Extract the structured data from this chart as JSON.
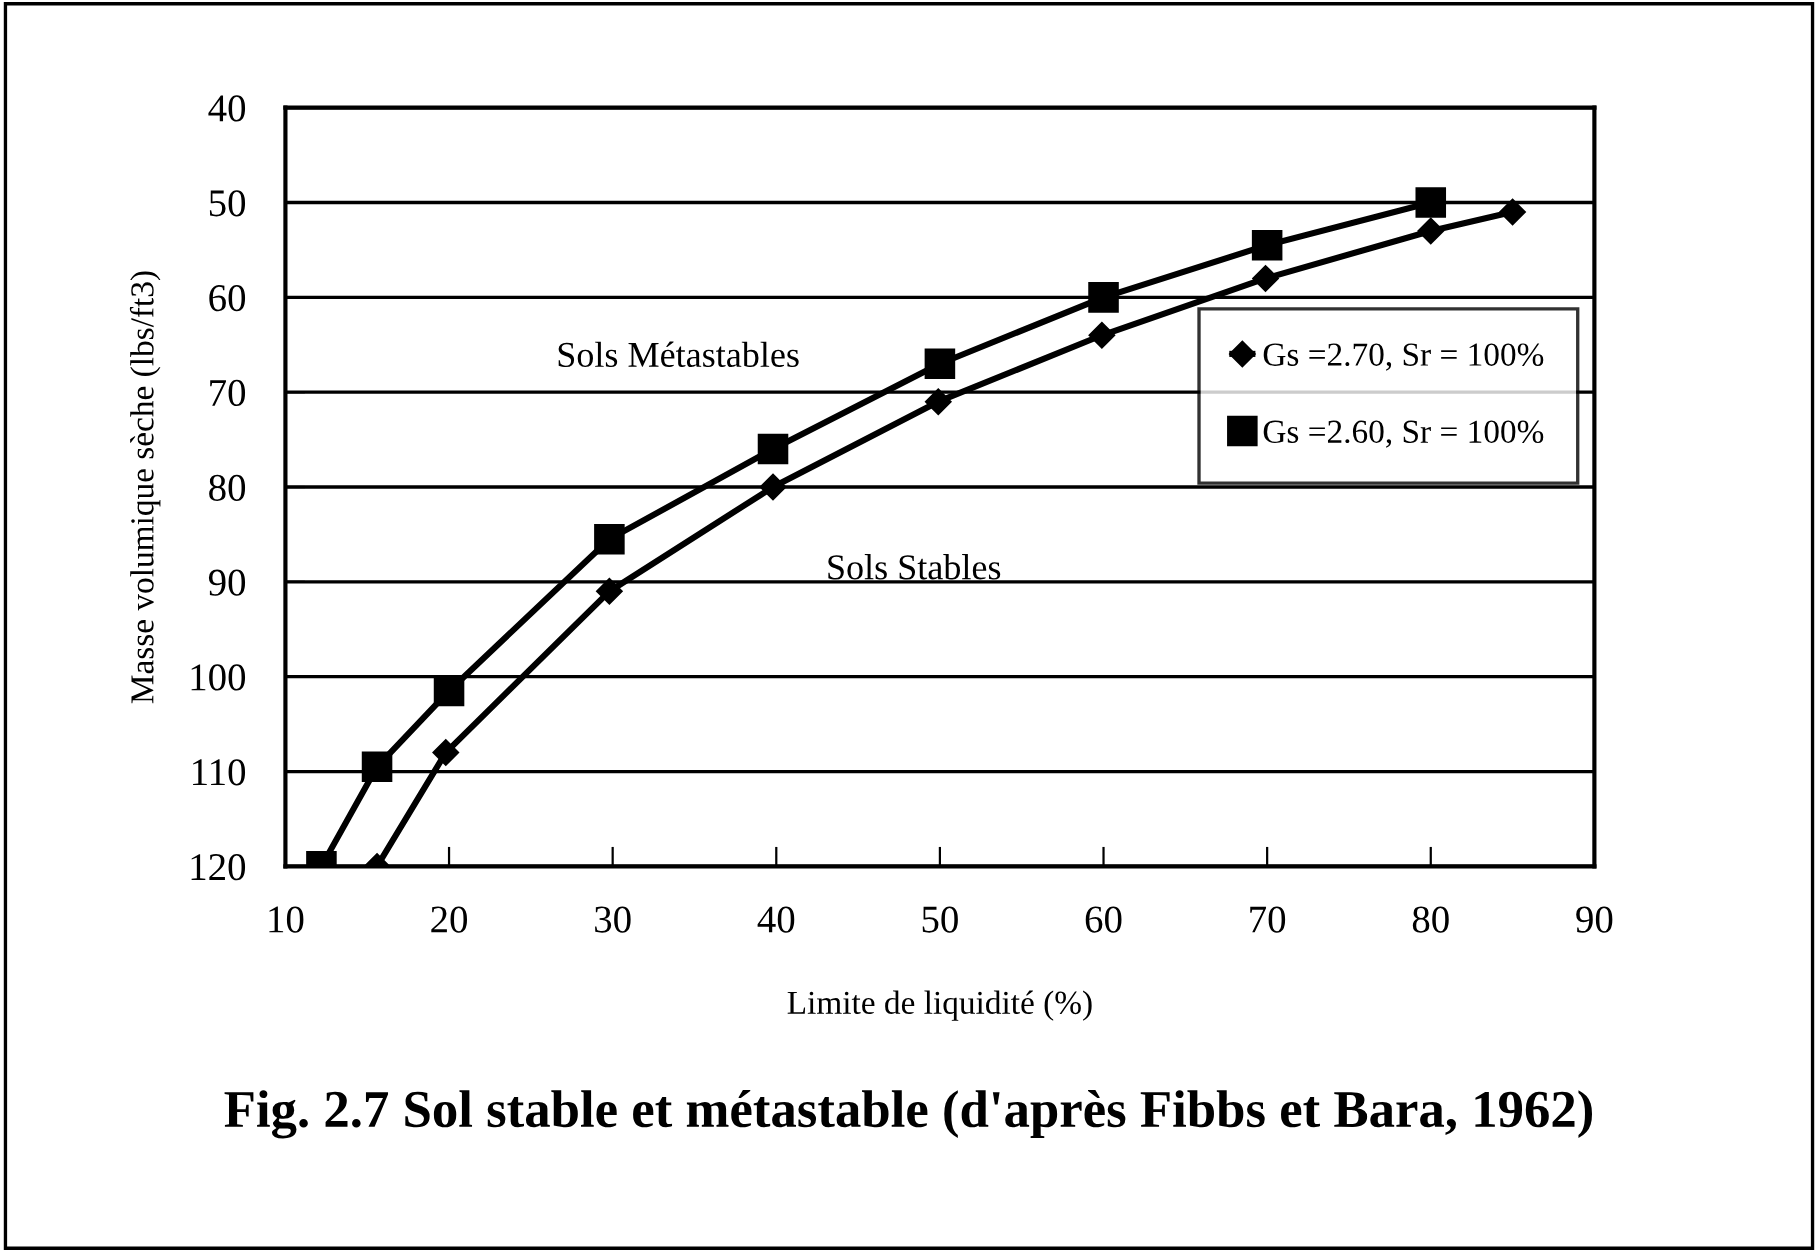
{
  "chart_data": {
    "type": "line",
    "title": "Fig. 2.7 Sol stable et métastable (d'après Fibbs et Bara, 1962)",
    "xlabel": "Limite de liquidité (%)",
    "ylabel": "Masse volumique sèche (lbs/ft3)",
    "series": [
      {
        "name": "Gs =2.70, Sr = 100%",
        "color": "#000000",
        "marker": "diamond",
        "x": [
          15.6,
          19.8,
          29.8,
          39.8,
          49.9,
          59.9,
          69.9,
          80,
          85
        ],
        "values": [
          120,
          108,
          91,
          80,
          71,
          64,
          58,
          53,
          51
        ]
      },
      {
        "name": "Gs =2.60, Sr = 100%",
        "color": "#000000",
        "marker": "square",
        "x": [
          12.2,
          15.6,
          20,
          29.8,
          39.8,
          50,
          60,
          70,
          80
        ],
        "values": [
          120,
          109.5,
          101.5,
          85.5,
          76,
          67,
          60,
          54.5,
          50
        ]
      }
    ],
    "annotations": [
      "Sols Métastables",
      "Sols Stables"
    ],
    "xlim": [
      10,
      90
    ],
    "xticks": [
      10,
      20,
      30,
      40,
      50,
      60,
      70,
      80,
      90
    ],
    "ylim": [
      120,
      40
    ],
    "yticks": [
      40,
      50,
      60,
      70,
      80,
      90,
      100,
      110,
      120
    ],
    "grid": "y",
    "legend": "right",
    "line_style": "solid"
  }
}
